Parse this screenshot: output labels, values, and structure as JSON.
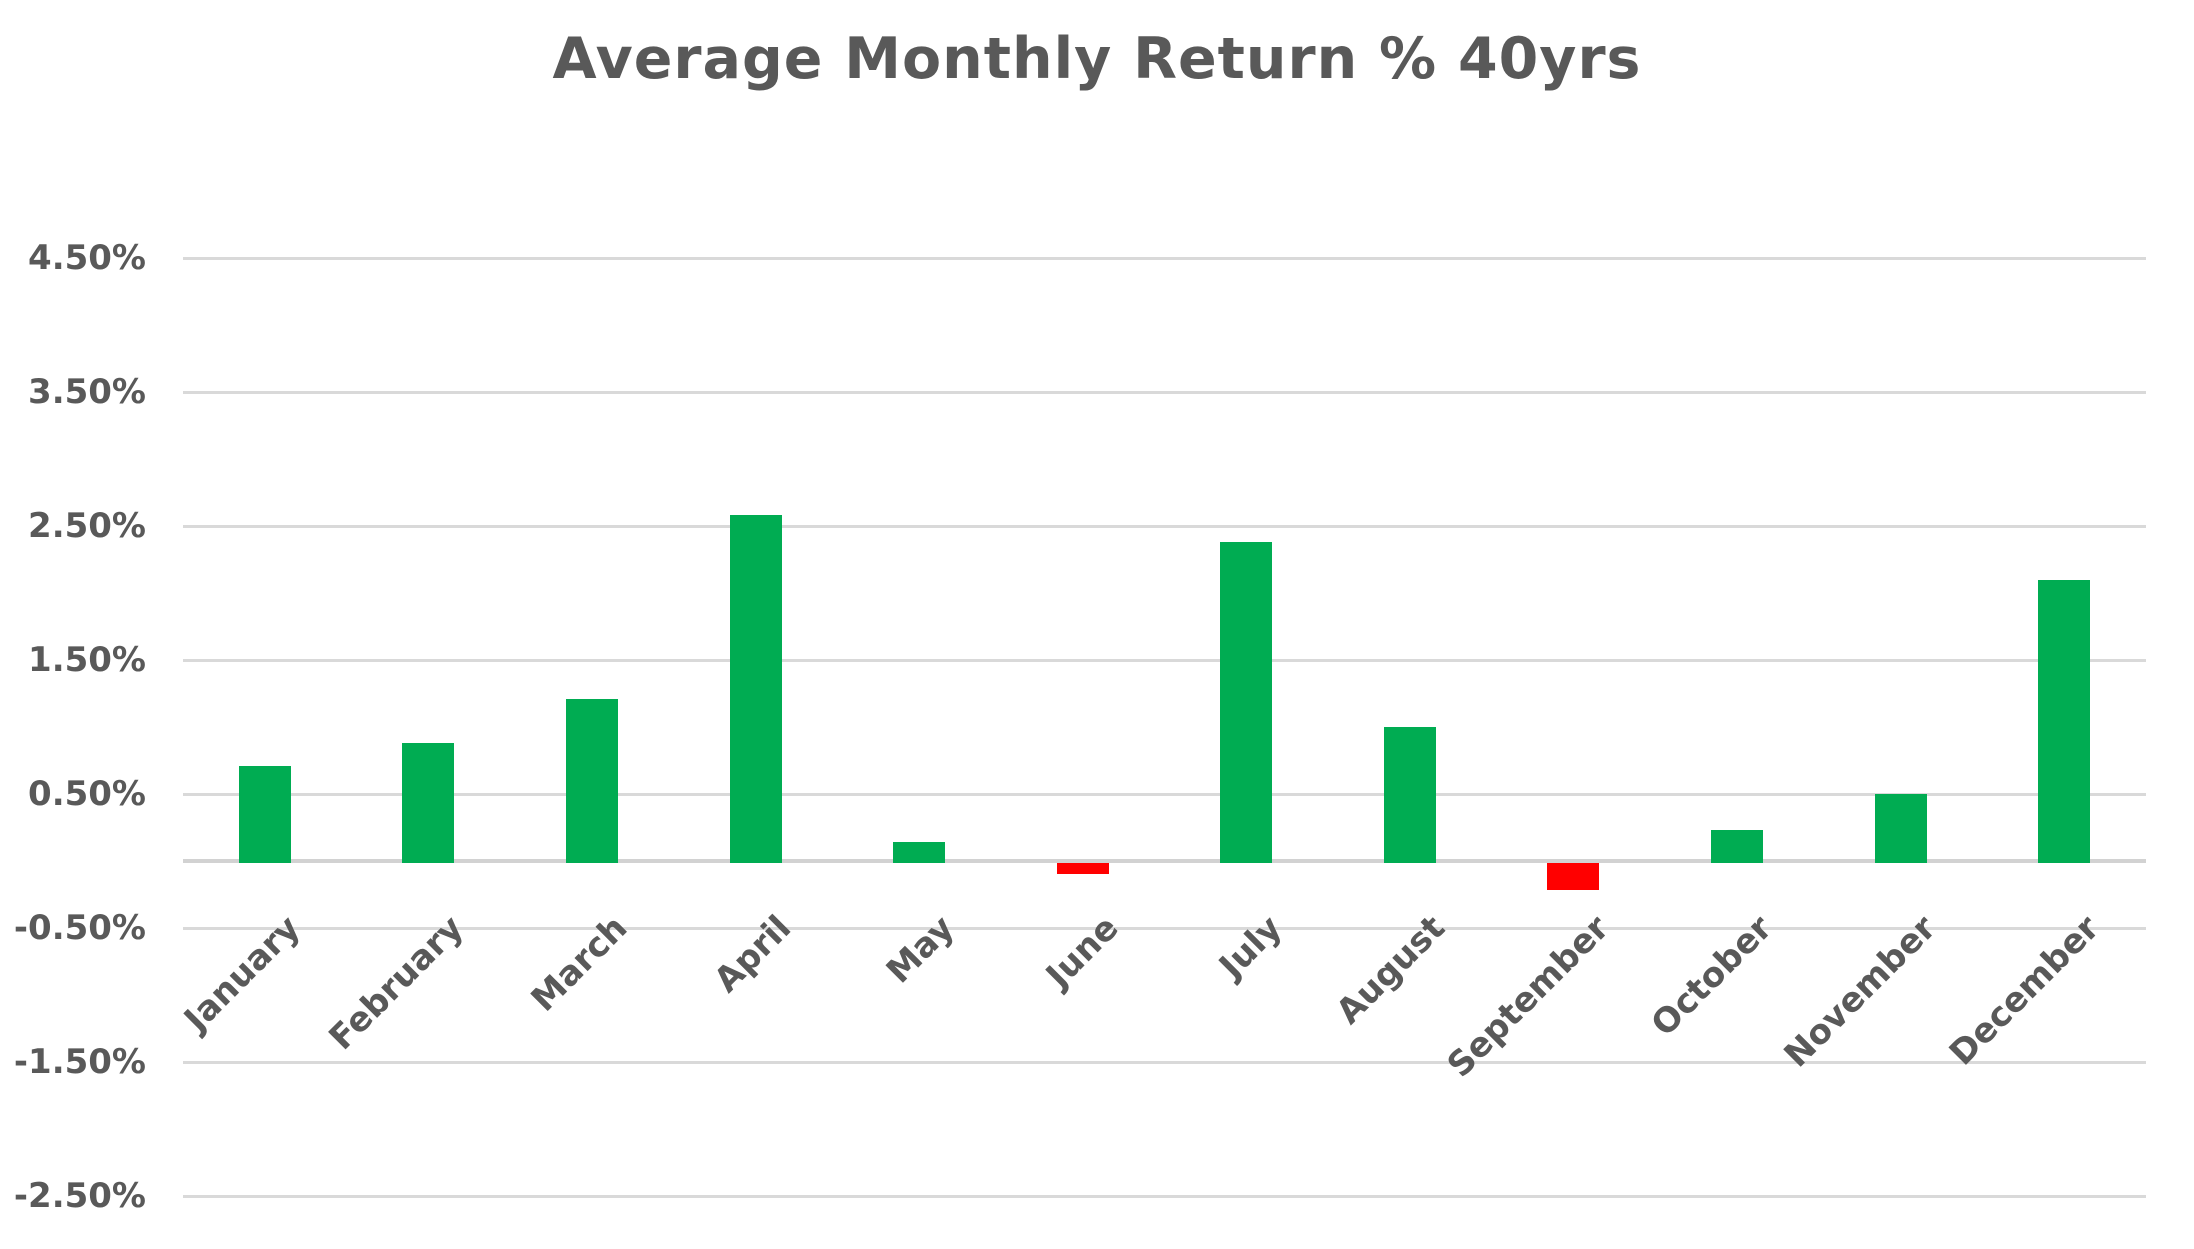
{
  "title": "Average Monthly Return % 40yrs",
  "chart_data": {
    "type": "bar",
    "title": "Average Monthly Return % 40yrs",
    "categories": [
      "January",
      "February",
      "March",
      "April",
      "May",
      "June",
      "July",
      "August",
      "September",
      "October",
      "November",
      "December"
    ],
    "values": [
      0.71,
      0.88,
      1.21,
      2.58,
      0.14,
      -0.07,
      2.38,
      1.0,
      -0.19,
      0.23,
      0.5,
      2.1
    ],
    "unit": "%",
    "xlabel": "",
    "ylabel": "",
    "y_tick_labels": [
      "4.50%",
      "3.50%",
      "2.50%",
      "1.50%",
      "0.50%",
      "-0.50%",
      "-1.50%",
      "-2.50%"
    ],
    "y_tick_values": [
      4.5,
      3.5,
      2.5,
      1.5,
      0.5,
      -0.5,
      -1.5,
      -2.5
    ],
    "ylim": [
      -2.5,
      4.5
    ],
    "grid": true,
    "legend": false,
    "colors": {
      "positive_bar": "#00AC52",
      "negative_bar": "#FF0000",
      "text": "#595959",
      "gridline": "#d9d9d9",
      "background": "#ffffff"
    }
  }
}
